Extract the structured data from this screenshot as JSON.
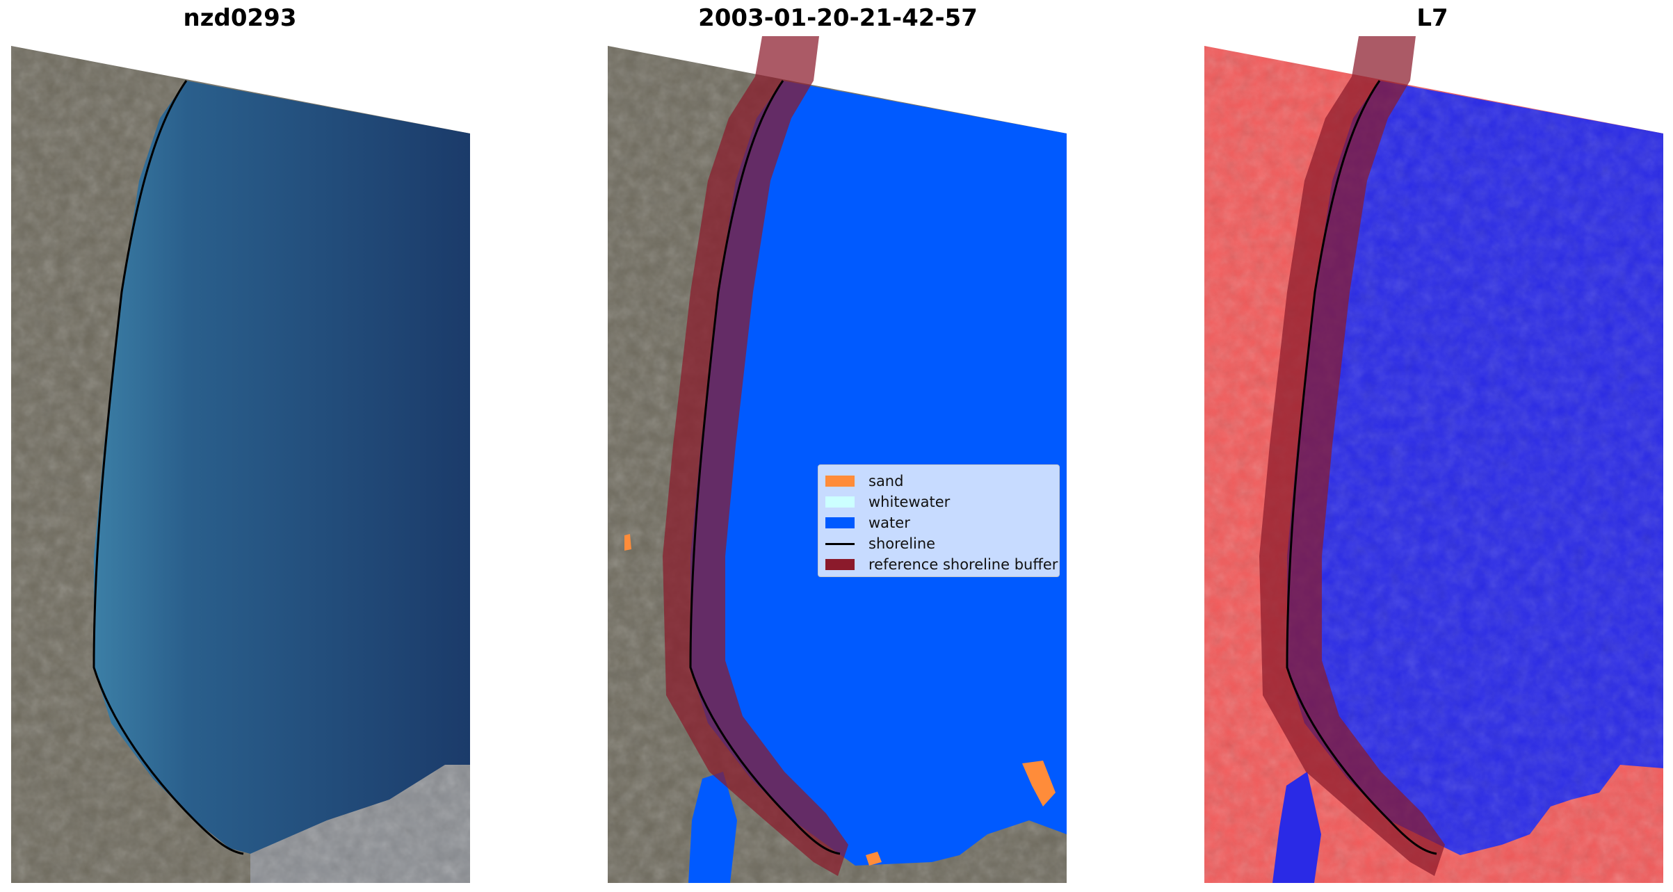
{
  "panels": [
    {
      "title": "nzd0293"
    },
    {
      "title": "2003-01-20-21-42-57"
    },
    {
      "title": "L7"
    }
  ],
  "legend": {
    "items": [
      {
        "label": "sand",
        "color": "#ff8c3a",
        "kind": "patch"
      },
      {
        "label": "whitewater",
        "color": "#ccffff",
        "kind": "patch"
      },
      {
        "label": "water",
        "color": "#005aff",
        "kind": "patch"
      },
      {
        "label": "shoreline",
        "color": "#000000",
        "kind": "line"
      },
      {
        "label": "reference shoreline buffer",
        "color": "#8b1a2b",
        "kind": "patch"
      }
    ]
  },
  "colors": {
    "sea_rgb": "#1e4a78",
    "land_rgb": "#6e6a5c",
    "water_class": "#005aff",
    "buffer": "#8b1a2b",
    "mndwi_water": "#2a2ae6",
    "mndwi_land": "#f25a5a"
  }
}
